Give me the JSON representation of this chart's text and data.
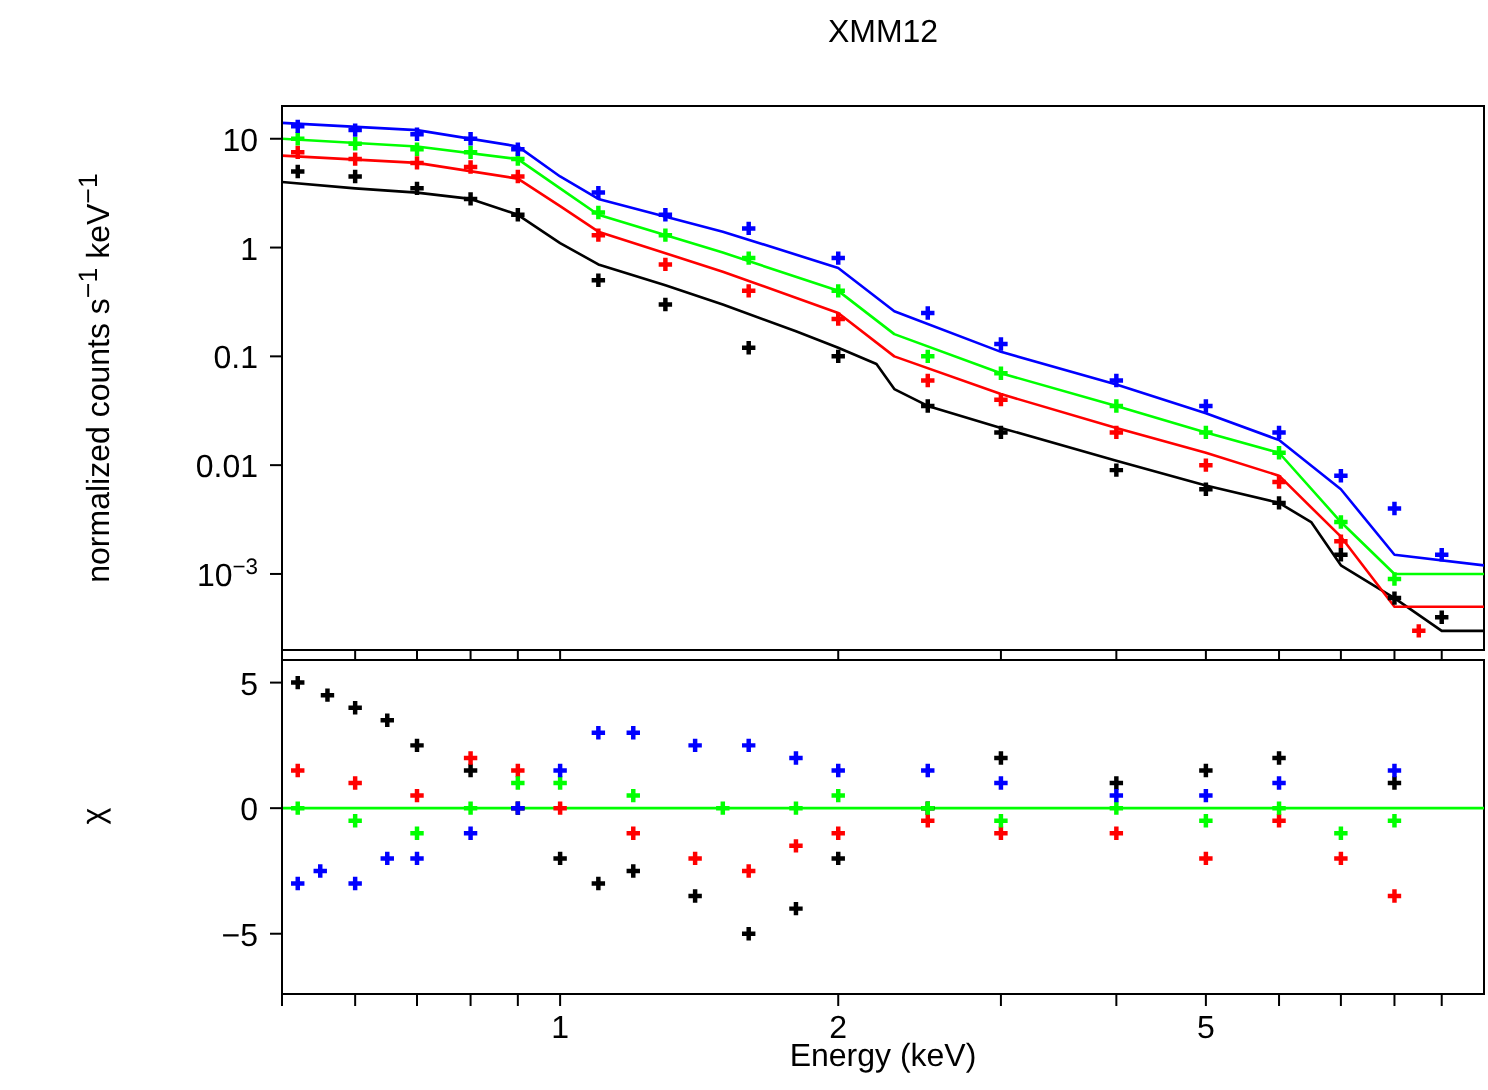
{
  "chart_data": [
    {
      "type": "line",
      "title": "XMM12",
      "ylabel": "normalized counts s$^{−1}$ keV$^{−1}$",
      "log": "xy",
      "xlim": [
        0.5,
        10
      ],
      "ylim": [
        0.0002,
        20
      ],
      "tick_labels": "y",
      "xticks": [
        {
          "value": 0.5,
          "label": null
        },
        {
          "value": 0.6,
          "label": null
        },
        {
          "value": 0.7,
          "label": null
        },
        {
          "value": 0.8,
          "label": null
        },
        {
          "value": 0.9,
          "label": null
        },
        {
          "value": 1,
          "label": null
        },
        {
          "value": 2,
          "label": null
        },
        {
          "value": 3,
          "label": null
        },
        {
          "value": 4,
          "label": null
        },
        {
          "value": 5,
          "label": null
        },
        {
          "value": 6,
          "label": null
        },
        {
          "value": 7,
          "label": null
        },
        {
          "value": 8,
          "label": null
        },
        {
          "value": 9,
          "label": null
        }
      ],
      "yticks": [
        10,
        1,
        0.1,
        0.01,
        {
          "value": 0.001,
          "label": "10$^{−3}$"
        }
      ],
      "series": [
        {
          "color": "#000000",
          "x": [
            0.5,
            0.6,
            0.7,
            0.8,
            0.9,
            1.0,
            1.1,
            1.3,
            1.5,
            1.8,
            2.0,
            2.2,
            2.3,
            2.5,
            3,
            4,
            5,
            6,
            6.5,
            7,
            8,
            9,
            10
          ],
          "values": [
            4,
            3.5,
            3.2,
            2.8,
            2.0,
            1.1,
            0.7,
            0.45,
            0.3,
            0.17,
            0.12,
            0.085,
            0.05,
            0.035,
            0.022,
            0.011,
            0.0065,
            0.0045,
            0.003,
            0.0012,
            0.0006,
            0.0003,
            0.0003
          ]
        },
        {
          "color": "#ff0000",
          "x": [
            0.5,
            0.7,
            0.9,
            1.0,
            1.1,
            1.5,
            2.0,
            2.3,
            3,
            4,
            5,
            6,
            7,
            8,
            10
          ],
          "values": [
            7,
            6,
            4.3,
            2.4,
            1.4,
            0.6,
            0.25,
            0.1,
            0.045,
            0.022,
            0.013,
            0.008,
            0.0022,
            0.0005,
            0.0005
          ]
        },
        {
          "color": "#00ff00",
          "x": [
            0.5,
            0.7,
            0.9,
            1.0,
            1.1,
            1.5,
            2.0,
            2.3,
            3,
            4,
            5,
            6,
            7,
            8,
            10
          ],
          "values": [
            10,
            8.5,
            6.5,
            3.5,
            2.0,
            0.9,
            0.4,
            0.16,
            0.07,
            0.035,
            0.02,
            0.013,
            0.003,
            0.001,
            0.001
          ]
        },
        {
          "color": "#0000ff",
          "x": [
            0.5,
            0.7,
            0.9,
            1.0,
            1.1,
            1.5,
            2.0,
            2.3,
            3,
            4,
            5,
            6,
            7,
            8,
            10
          ],
          "values": [
            14,
            12,
            8.5,
            4.5,
            2.8,
            1.4,
            0.65,
            0.26,
            0.11,
            0.055,
            0.03,
            0.017,
            0.006,
            0.0015,
            0.0012
          ]
        },
        {
          "type": "scatter",
          "marker": "cross",
          "color": "#000000",
          "x": [
            0.52,
            0.6,
            0.7,
            0.8,
            0.9,
            1.1,
            1.3,
            1.6,
            2.0,
            2.5,
            3,
            4,
            5,
            6,
            7,
            8,
            9
          ],
          "values": [
            5,
            4.5,
            3.5,
            2.8,
            2.0,
            0.5,
            0.3,
            0.12,
            0.1,
            0.035,
            0.02,
            0.009,
            0.006,
            0.0045,
            0.0015,
            0.0006,
            0.0004
          ]
        },
        {
          "type": "scatter",
          "marker": "cross",
          "color": "#ff0000",
          "x": [
            0.52,
            0.6,
            0.7,
            0.8,
            0.9,
            1.1,
            1.3,
            1.6,
            2.0,
            2.5,
            3,
            4,
            5,
            6,
            7,
            8.5
          ],
          "values": [
            7.5,
            6.5,
            6,
            5.5,
            4.5,
            1.3,
            0.7,
            0.4,
            0.22,
            0.06,
            0.04,
            0.02,
            0.01,
            0.007,
            0.002,
            0.0003
          ]
        },
        {
          "type": "scatter",
          "marker": "cross",
          "color": "#00ff00",
          "x": [
            0.52,
            0.6,
            0.7,
            0.8,
            0.9,
            1.1,
            1.3,
            1.6,
            2.0,
            2.5,
            3,
            4,
            5,
            6,
            7,
            8
          ],
          "values": [
            10,
            9,
            8,
            7.5,
            6.5,
            2.1,
            1.3,
            0.8,
            0.4,
            0.1,
            0.07,
            0.035,
            0.02,
            0.013,
            0.003,
            0.0009
          ]
        },
        {
          "type": "scatter",
          "marker": "cross",
          "color": "#0000ff",
          "x": [
            0.52,
            0.6,
            0.7,
            0.8,
            0.9,
            1.1,
            1.3,
            1.6,
            2.0,
            2.5,
            3,
            4,
            5,
            6,
            7,
            8,
            9
          ],
          "values": [
            13,
            12,
            11,
            10,
            8,
            3.2,
            2.0,
            1.5,
            0.8,
            0.25,
            0.13,
            0.06,
            0.035,
            0.02,
            0.008,
            0.004,
            0.0015
          ]
        }
      ]
    },
    {
      "type": "scatter",
      "ylabel": "χ",
      "xlabel": "Energy (keV)",
      "log": "x",
      "xlim": [
        0.5,
        10
      ],
      "ylim": [
        -7.4,
        5.9
      ],
      "xticks": [
        {
          "value": 0.5,
          "label": null
        },
        {
          "value": 0.6,
          "label": null
        },
        {
          "value": 0.7,
          "label": null
        },
        {
          "value": 0.8,
          "label": null
        },
        {
          "value": 0.9,
          "label": null
        },
        1,
        2,
        {
          "value": 3,
          "label": null
        },
        {
          "value": 4,
          "label": null
        },
        5,
        {
          "value": 6,
          "label": null
        },
        {
          "value": 7,
          "label": null
        },
        {
          "value": 8,
          "label": null
        },
        {
          "value": 9,
          "label": null
        }
      ],
      "yticks": [
        5,
        0,
        {
          "value": -5,
          "label": "−5"
        }
      ],
      "ref_lines": [
        {
          "axis": "y",
          "value": 0,
          "color": "#00ff00"
        }
      ],
      "series": [
        {
          "marker": "cross",
          "color": "#000000",
          "x": [
            0.52,
            0.56,
            0.6,
            0.65,
            0.7,
            0.8,
            0.9,
            1.0,
            1.1,
            1.2,
            1.4,
            1.6,
            1.8,
            2.0,
            2.5,
            3,
            4,
            5,
            6,
            8
          ],
          "values": [
            5,
            4.5,
            4,
            3.5,
            2.5,
            1.5,
            0,
            -2,
            -3,
            -2.5,
            -3.5,
            -5,
            -4,
            -2,
            0,
            2,
            1,
            1.5,
            2,
            1
          ]
        },
        {
          "marker": "cross",
          "color": "#ff0000",
          "x": [
            0.52,
            0.6,
            0.7,
            0.8,
            0.9,
            1.0,
            1.2,
            1.4,
            1.6,
            1.8,
            2.0,
            2.5,
            3,
            4,
            5,
            6,
            7,
            8
          ],
          "values": [
            1.5,
            1,
            0.5,
            2,
            1.5,
            0,
            -1,
            -2,
            -2.5,
            -1.5,
            -1,
            -0.5,
            -1,
            -1,
            -2,
            -0.5,
            -2,
            -3.5
          ]
        },
        {
          "marker": "cross",
          "color": "#00ff00",
          "x": [
            0.52,
            0.6,
            0.7,
            0.8,
            0.9,
            1.0,
            1.2,
            1.5,
            1.8,
            2.0,
            2.5,
            3,
            4,
            5,
            6,
            7,
            8
          ],
          "values": [
            0,
            -0.5,
            -1,
            0,
            1,
            1,
            0.5,
            0,
            0,
            0.5,
            0,
            -0.5,
            0,
            -0.5,
            0,
            -1,
            -0.5
          ]
        },
        {
          "marker": "cross",
          "color": "#0000ff",
          "x": [
            0.52,
            0.55,
            0.6,
            0.65,
            0.7,
            0.8,
            0.9,
            1.0,
            1.1,
            1.2,
            1.4,
            1.6,
            1.8,
            2.0,
            2.5,
            3,
            4,
            5,
            6,
            8
          ],
          "values": [
            -3,
            -2.5,
            -3,
            -2,
            -2,
            -1,
            0,
            1.5,
            3,
            3,
            2.5,
            2.5,
            2,
            1.5,
            1.5,
            1,
            0.5,
            0.5,
            1,
            1.5
          ]
        }
      ]
    }
  ]
}
